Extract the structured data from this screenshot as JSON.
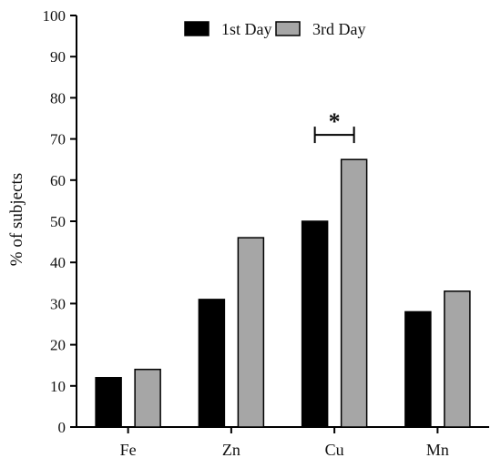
{
  "chart_data": {
    "type": "bar",
    "categories": [
      "Fe",
      "Zn",
      "Cu",
      "Mn"
    ],
    "series": [
      {
        "name": "1st Day",
        "values": [
          12,
          31,
          50,
          28
        ],
        "color": "#000000"
      },
      {
        "name": "3rd Day",
        "values": [
          14,
          46,
          65,
          33
        ],
        "color": "#a6a6a6"
      }
    ],
    "title": "",
    "xlabel": "",
    "ylabel": "% of subjects",
    "ylim": [
      0,
      100
    ],
    "yticks": [
      0,
      10,
      20,
      30,
      40,
      50,
      60,
      70,
      80,
      90,
      100
    ],
    "grid": false,
    "legend_position": "top-center",
    "annotations": [
      {
        "label": "*",
        "category": "Cu",
        "series": [
          "1st Day",
          "3rd Day"
        ],
        "bracket_value": 71
      }
    ]
  }
}
